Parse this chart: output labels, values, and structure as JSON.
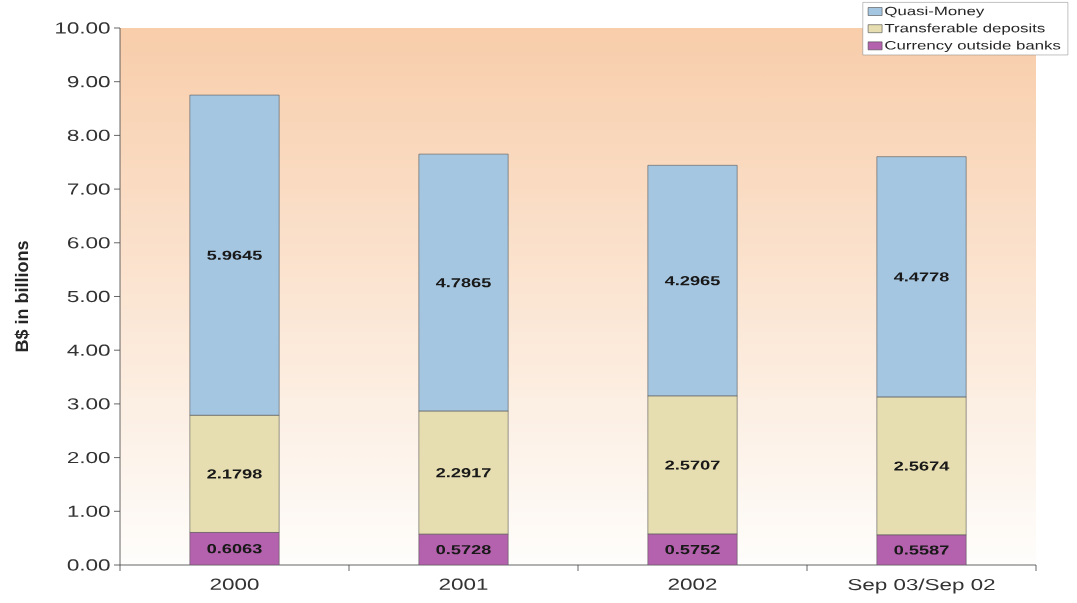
{
  "chart_data": {
    "type": "bar",
    "stacked": true,
    "ylabel": "B$ in billions",
    "categories": [
      "2000",
      "2001",
      "2002",
      "Sep 03/Sep 02"
    ],
    "series": [
      {
        "name": "Currency outside banks",
        "color": "#b462ad",
        "values": [
          0.6063,
          0.5728,
          0.5752,
          0.5587
        ]
      },
      {
        "name": "Transferable deposits",
        "color": "#e6deb0",
        "values": [
          2.1798,
          2.2917,
          2.5707,
          2.5674
        ]
      },
      {
        "name": "Quasi-Money",
        "color": "#a5c6e1",
        "values": [
          5.9645,
          4.7865,
          4.2965,
          4.4778
        ]
      }
    ],
    "ylim": [
      0,
      10
    ],
    "yticks": [
      {
        "value": 0,
        "label": "0.00"
      },
      {
        "value": 1,
        "label": "1.00"
      },
      {
        "value": 2,
        "label": "2.00"
      },
      {
        "value": 3,
        "label": "3.00"
      },
      {
        "value": 4,
        "label": "4.00"
      },
      {
        "value": 5,
        "label": "5.00"
      },
      {
        "value": 6,
        "label": "6.00"
      },
      {
        "value": 7,
        "label": "7.00"
      },
      {
        "value": 8,
        "label": "8.00"
      },
      {
        "value": 9,
        "label": "9.00"
      },
      {
        "value": 10,
        "label": "10.00"
      }
    ],
    "data_labels": true,
    "legend": "top right"
  }
}
